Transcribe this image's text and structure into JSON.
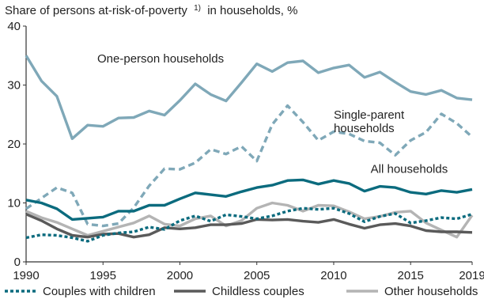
{
  "chart_data": {
    "type": "line",
    "title": "Share of persons at-risk-of-poverty",
    "title_footnote": "1)",
    "title_suffix": "in households, %",
    "xlabel": "",
    "ylabel": "",
    "xlim": [
      1990,
      2019
    ],
    "ylim": [
      0,
      40
    ],
    "x_ticks": [
      1990,
      1995,
      2000,
      2005,
      2010,
      2015,
      2019
    ],
    "y_ticks": [
      0,
      10,
      20,
      30,
      40
    ],
    "grid": false,
    "legend_position": "bottom",
    "x": [
      1990,
      1991,
      1992,
      1993,
      1994,
      1995,
      1996,
      1997,
      1998,
      1999,
      2000,
      2001,
      2002,
      2003,
      2004,
      2005,
      2006,
      2007,
      2008,
      2009,
      2010,
      2011,
      2012,
      2013,
      2014,
      2015,
      2016,
      2017,
      2018,
      2019
    ],
    "series": [
      {
        "key": "one_person",
        "label": "One-person households",
        "label_x": 1990,
        "label_y": 33.8,
        "color": "#7fa8b8",
        "dash": "solid",
        "in_legend": false,
        "values": [
          35,
          30.7,
          28.1,
          20.9,
          23.2,
          23,
          24.4,
          24.5,
          25.6,
          24.9,
          27.4,
          30.2,
          28.4,
          27.3,
          30.4,
          33.6,
          32.3,
          33.8,
          34.1,
          32.1,
          32.9,
          33.4,
          31.3,
          32.2,
          30.5,
          28.9,
          28.4,
          29.1,
          27.8,
          27.5
        ]
      },
      {
        "key": "single_parent",
        "label": "Single-parent households",
        "label_lines": [
          "Single-parent",
          "households"
        ],
        "label_x": 2010,
        "label_y": 24.3,
        "color": "#7fa8b8",
        "dash": "dashed",
        "in_legend": false,
        "values": [
          9,
          10.8,
          12.6,
          11.7,
          6.4,
          6.1,
          6.5,
          9.2,
          12.9,
          15.8,
          15.7,
          16.8,
          19.1,
          18.3,
          19.6,
          17.1,
          23.3,
          26.5,
          23.7,
          20.6,
          22.1,
          21.7,
          20.5,
          20.2,
          18.1,
          20.6,
          22,
          25.1,
          23.5,
          21.2
        ]
      },
      {
        "key": "all",
        "label": "All households",
        "label_x": 2012.4,
        "label_y": 15.1,
        "color": "#0b6b7e",
        "dash": "solid",
        "in_legend": false,
        "values": [
          10.5,
          10,
          9,
          7.2,
          7.4,
          7.6,
          8.6,
          8.6,
          9.6,
          9.6,
          10.7,
          11.7,
          11.4,
          11.1,
          11.9,
          12.6,
          13,
          13.8,
          13.9,
          13.2,
          13.8,
          13.3,
          12,
          12.8,
          12.6,
          11.8,
          11.5,
          12.1,
          11.8,
          12.3
        ]
      },
      {
        "key": "couples_children",
        "label": "Couples with children",
        "color": "#0b6b7e",
        "dash": "dotted",
        "in_legend": true,
        "values": [
          4.1,
          4.6,
          4.5,
          4.1,
          3.5,
          4.5,
          4.9,
          5.1,
          5.9,
          5.5,
          7,
          7.8,
          6.9,
          8,
          7.7,
          7.3,
          7.8,
          8.6,
          9.1,
          8.9,
          9.1,
          8.2,
          6.8,
          7.7,
          8.2,
          6.6,
          7,
          7.5,
          7.3,
          8.1
        ]
      },
      {
        "key": "childless",
        "label": "Childless couples",
        "color": "#5a5a5a",
        "dash": "solid",
        "in_legend": true,
        "values": [
          8.1,
          7,
          5.6,
          4.5,
          4.2,
          4.7,
          4.8,
          4.2,
          4.6,
          5.8,
          5.6,
          5.8,
          6.3,
          6.3,
          6.5,
          7.2,
          7.1,
          7.2,
          6.9,
          6.7,
          7.2,
          6.4,
          5.7,
          6.3,
          6.5,
          6.1,
          5.3,
          5.1,
          5.1,
          5
        ]
      },
      {
        "key": "other",
        "label": "Other households",
        "color": "#b4b4b4",
        "dash": "solid",
        "in_legend": true,
        "values": [
          8.6,
          7.5,
          6.7,
          5.6,
          4.5,
          5.2,
          5.9,
          6.6,
          7.8,
          6.4,
          6.1,
          7.3,
          7.8,
          6.1,
          7,
          9.1,
          10,
          9.6,
          8.6,
          9.6,
          9.5,
          8.5,
          7.3,
          7.7,
          8.4,
          8.6,
          6.6,
          5.4,
          4.2,
          7.9
        ]
      }
    ]
  }
}
